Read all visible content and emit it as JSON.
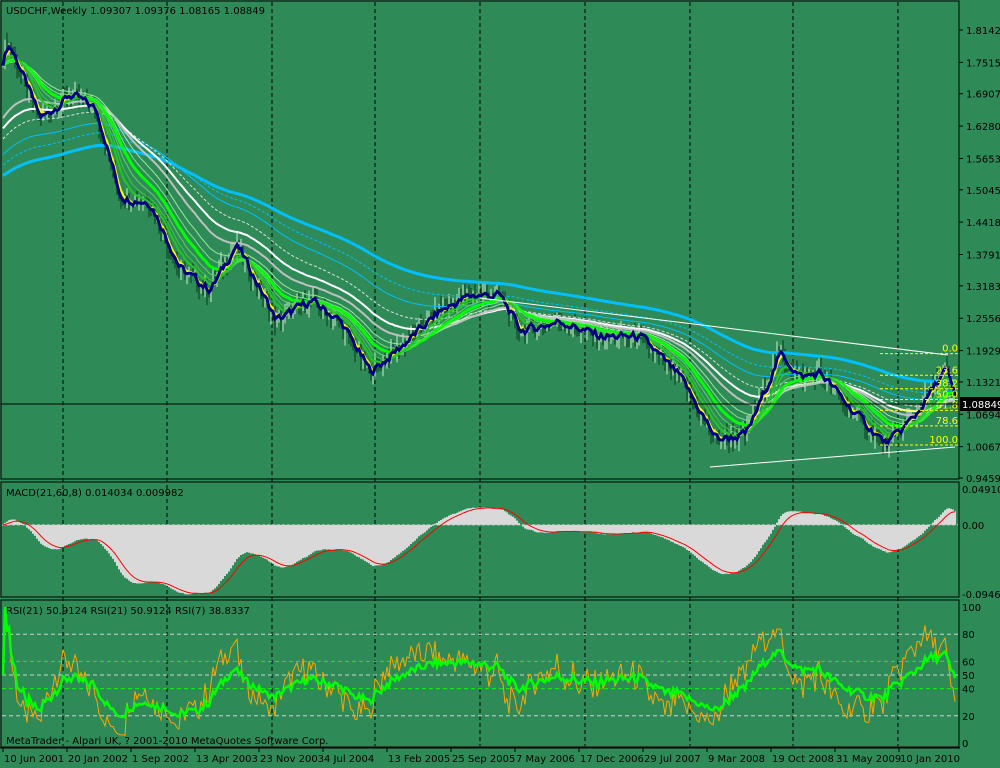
{
  "header": {
    "main_title": "USDCHF,Weekly  1.09307 1.09376 1.08165 1.08849",
    "macd_title": "MACD(21,60,8) 0.014034 0.009982",
    "rsi_title": "RSI(21) 50.9124   RSI(21) 50.9124   RSI(7) 38.8337",
    "copyright": "MetaTrader - Alpari UK, ? 2001-2010 MetaQuotes Software Corp."
  },
  "colors": {
    "background": "#2e8b57",
    "ema_fast": "#000080",
    "ema_yellow": "#ffff00",
    "ema_green": "#00ff00",
    "ema_white": "#ffffff",
    "ema_cyan": "#00bfff",
    "macd_hist": "#d9d9d9",
    "macd_signal": "#ff0000",
    "rsi_slow": "#00ff00",
    "rsi_fast": "#ffa500",
    "fibo": "#ffff00"
  },
  "price_axis": [
    "1.81420",
    "1.75150",
    "1.69070",
    "1.62800",
    "1.56530",
    "1.50450",
    "1.44180",
    "1.37910",
    "1.31830",
    "1.25560",
    "1.19290",
    "1.13210",
    "1.06940",
    "1.00670",
    "0.94590"
  ],
  "current_price": "1.08849",
  "macd_axis": [
    "0.049104",
    "0.00",
    "-0.09465"
  ],
  "rsi_axis": [
    "100",
    "80",
    "60",
    "50",
    "40",
    "20",
    "0"
  ],
  "time_axis": [
    "10 Jun 2001",
    "20 Jan 2002",
    "1 Sep 2002",
    "13 Apr 2003",
    "23 Nov 2003",
    "4 Jul 2004",
    "13 Feb 2005",
    "25 Sep 2005",
    "7 May 2006",
    "17 Dec 2006",
    "29 Jul 2007",
    "9 Mar 2008",
    "19 Oct 2008",
    "31 May 2009",
    "10 Jan 2010"
  ],
  "fibo_levels": [
    {
      "label": "0.0",
      "price": 1.187
    },
    {
      "label": "23.6",
      "price": 1.145
    },
    {
      "label": "38.2",
      "price": 1.119
    },
    {
      "label": "50.0",
      "price": 1.098
    },
    {
      "label": "61.8",
      "price": 1.077
    },
    {
      "label": "78.6",
      "price": 1.047
    },
    {
      "label": "100.0",
      "price": 1.01
    }
  ],
  "chart_data": {
    "type": "line",
    "title": "USDCHF,Weekly",
    "symbol": "USDCHF",
    "timeframe": "Weekly",
    "last_bar": {
      "open": 1.09307,
      "high": 1.09376,
      "low": 1.08165,
      "close": 1.08849
    },
    "ylim": [
      0.9459,
      1.8142
    ],
    "grid": true,
    "close_path": [
      [
        "2001-06-10",
        1.76
      ],
      [
        "2001-06-24",
        1.795
      ],
      [
        "2001-10-14",
        1.64
      ],
      [
        "2002-01-27",
        1.69
      ],
      [
        "2002-04-28",
        1.66
      ],
      [
        "2002-07-21",
        1.49
      ],
      [
        "2002-11-03",
        1.48
      ],
      [
        "2003-02-16",
        1.35
      ],
      [
        "2003-06-01",
        1.31
      ],
      [
        "2003-08-31",
        1.4
      ],
      [
        "2004-01-18",
        1.25
      ],
      [
        "2004-05-16",
        1.29
      ],
      [
        "2004-08-29",
        1.25
      ],
      [
        "2004-12-12",
        1.15
      ],
      [
        "2005-03-27",
        1.2
      ],
      [
        "2005-08-14",
        1.27
      ],
      [
        "2005-11-27",
        1.3
      ],
      [
        "2006-03-12",
        1.3
      ],
      [
        "2006-05-21",
        1.23
      ],
      [
        "2006-10-08",
        1.25
      ],
      [
        "2007-02-25",
        1.22
      ],
      [
        "2007-07-15",
        1.22
      ],
      [
        "2007-12-02",
        1.14
      ],
      [
        "2008-04-06",
        1.02
      ],
      [
        "2008-07-20",
        1.03
      ],
      [
        "2008-11-16",
        1.19
      ],
      [
        "2009-01-25",
        1.14
      ],
      [
        "2009-04-05",
        1.15
      ],
      [
        "2009-07-19",
        1.08
      ],
      [
        "2009-11-22",
        1.01
      ],
      [
        "2010-03-07",
        1.07
      ],
      [
        "2010-06-20",
        1.16
      ],
      [
        "2010-07-25",
        1.0885
      ]
    ],
    "indicators": {
      "macd": {
        "fast": 21,
        "slow": 60,
        "signal": 8,
        "ylim": [
          -0.09465,
          0.049104
        ]
      },
      "rsi": [
        {
          "period": 21
        },
        {
          "period": 21
        },
        {
          "period": 7
        }
      ],
      "rsi_levels": [
        20,
        40,
        50,
        60,
        80
      ]
    }
  }
}
